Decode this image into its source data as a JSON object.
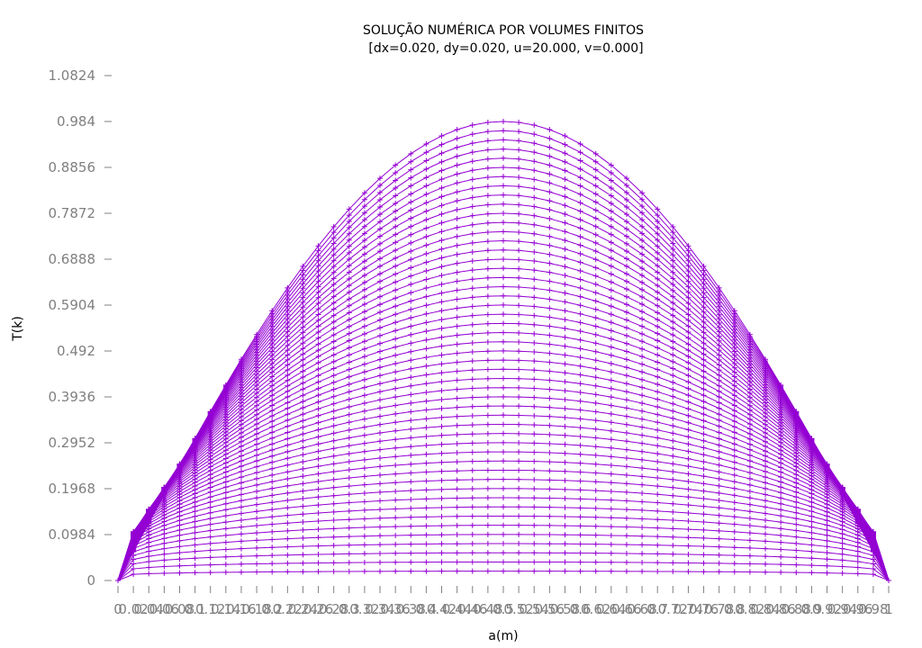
{
  "chart_data": {
    "type": "line",
    "title": "SOLUÇÃO NUMÉRICA POR VOLUMES FINITOS",
    "subtitle": "[dx=0.020, dy=0.020, u=20.000, v=0.000]",
    "xlabel": "a(m)",
    "ylabel": "T(k)",
    "xlim": [
      0,
      1
    ],
    "ylim": [
      0,
      1.0824
    ],
    "y_ticks": [
      "0",
      "0.0984",
      "0.1968",
      "0.2952",
      "0.3936",
      "0.492",
      "0.5904",
      "0.6888",
      "0.7872",
      "0.8856",
      "0.984",
      "1.0824"
    ],
    "y_tick_values": [
      0,
      0.0984,
      0.1968,
      0.2952,
      0.3936,
      0.492,
      0.5904,
      0.6888,
      0.7872,
      0.8856,
      0.984,
      1.0824
    ],
    "x_ticks": [
      "0",
      "0.02",
      "0.04",
      "0.06",
      "0.08",
      "0.1",
      "0.12",
      "0.14",
      "0.16",
      "0.18",
      "0.2",
      "0.22",
      "0.24",
      "0.26",
      "0.28",
      "0.3",
      "0.32",
      "0.34",
      "0.36",
      "0.38",
      "0.4",
      "0.42",
      "0.44",
      "0.46",
      "0.48",
      "0.5",
      "0.52",
      "0.54",
      "0.56",
      "0.58",
      "0.6",
      "0.62",
      "0.64",
      "0.66",
      "0.68",
      "0.7",
      "0.72",
      "0.74",
      "0.76",
      "0.78",
      "0.8",
      "0.82",
      "0.84",
      "0.86",
      "0.88",
      "0.9",
      "0.92",
      "0.94",
      "0.96",
      "0.98",
      "1"
    ],
    "x_tick_values": [
      0,
      0.02,
      0.04,
      0.06,
      0.08,
      0.1,
      0.12,
      0.14,
      0.16,
      0.18,
      0.2,
      0.22,
      0.24,
      0.26,
      0.28,
      0.3,
      0.32,
      0.34,
      0.36,
      0.38,
      0.4,
      0.42,
      0.44,
      0.46,
      0.48,
      0.5,
      0.52,
      0.54,
      0.56,
      0.58,
      0.6,
      0.62,
      0.64,
      0.66,
      0.68,
      0.7,
      0.72,
      0.74,
      0.76,
      0.78,
      0.8,
      0.82,
      0.84,
      0.86,
      0.88,
      0.9,
      0.92,
      0.94,
      0.96,
      0.98,
      1
    ],
    "series_color": "#9400d3",
    "series_count": 50,
    "series_peak_max": 0.984,
    "series_peak_min": 0.02,
    "peak_x": 0.5,
    "marker": "plus",
    "grid": false,
    "legend": "none"
  }
}
